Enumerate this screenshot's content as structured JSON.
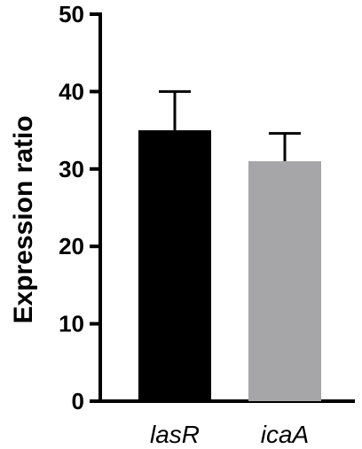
{
  "chart_data": {
    "type": "bar",
    "categories": [
      "lasR",
      "icaA"
    ],
    "values": [
      35,
      31
    ],
    "errors": [
      5,
      3.6
    ],
    "ylabel": "Expression ratio",
    "xlabel": "",
    "ylim": [
      0,
      50
    ],
    "yticks": [
      0,
      10,
      20,
      30,
      40,
      50
    ],
    "bar_colors": [
      "#000000",
      "#a6a6a8"
    ],
    "grid": false
  }
}
